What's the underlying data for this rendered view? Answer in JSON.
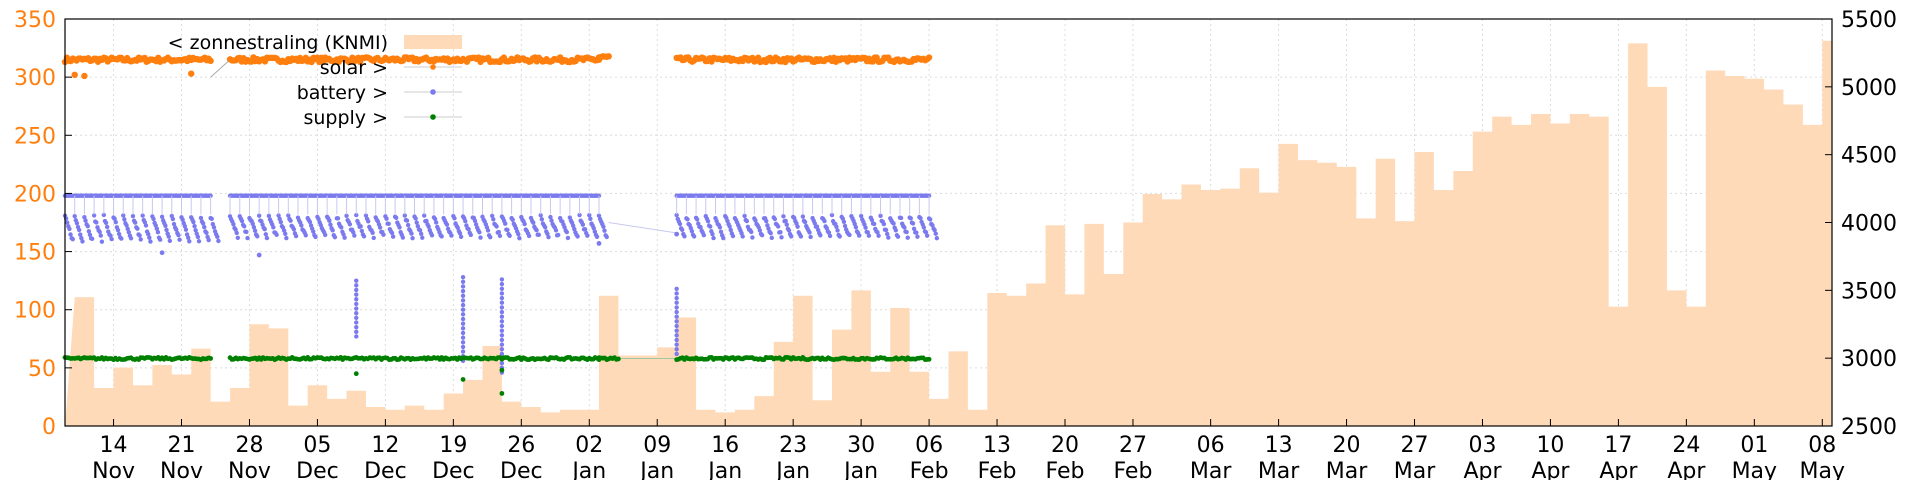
{
  "chart_data": {
    "type": "line",
    "title": "",
    "xlabel": "",
    "ylabel": "",
    "y2label": "",
    "ylim": [
      0,
      350
    ],
    "y2lim": [
      2500,
      5500
    ],
    "yticks": [
      0,
      50,
      100,
      150,
      200,
      250,
      300,
      350
    ],
    "y2ticks": [
      2500,
      3000,
      3500,
      4000,
      4500,
      5000,
      5500
    ],
    "xlim": [
      "2023-11-09",
      "2024-05-09"
    ],
    "xticks": [
      {
        "date": "2023-11-14",
        "day": "14",
        "month": "Nov"
      },
      {
        "date": "2023-11-21",
        "day": "21",
        "month": "Nov"
      },
      {
        "date": "2023-11-28",
        "day": "28",
        "month": "Nov"
      },
      {
        "date": "2023-12-05",
        "day": "05",
        "month": "Dec"
      },
      {
        "date": "2023-12-12",
        "day": "12",
        "month": "Dec"
      },
      {
        "date": "2023-12-19",
        "day": "19",
        "month": "Dec"
      },
      {
        "date": "2023-12-26",
        "day": "26",
        "month": "Dec"
      },
      {
        "date": "2024-01-02",
        "day": "02",
        "month": "Jan"
      },
      {
        "date": "2024-01-09",
        "day": "09",
        "month": "Jan"
      },
      {
        "date": "2024-01-16",
        "day": "16",
        "month": "Jan"
      },
      {
        "date": "2024-01-23",
        "day": "23",
        "month": "Jan"
      },
      {
        "date": "2024-01-30",
        "day": "30",
        "month": "Jan"
      },
      {
        "date": "2024-02-06",
        "day": "06",
        "month": "Feb"
      },
      {
        "date": "2024-02-13",
        "day": "13",
        "month": "Feb"
      },
      {
        "date": "2024-02-20",
        "day": "20",
        "month": "Feb"
      },
      {
        "date": "2024-02-27",
        "day": "27",
        "month": "Feb"
      },
      {
        "date": "2024-03-06",
        "day": "06",
        "month": "Mar"
      },
      {
        "date": "2024-03-13",
        "day": "13",
        "month": "Mar"
      },
      {
        "date": "2024-03-20",
        "day": "20",
        "month": "Mar"
      },
      {
        "date": "2024-03-27",
        "day": "27",
        "month": "Mar"
      },
      {
        "date": "2024-04-03",
        "day": "03",
        "month": "Apr"
      },
      {
        "date": "2024-04-10",
        "day": "10",
        "month": "Apr"
      },
      {
        "date": "2024-04-17",
        "day": "17",
        "month": "Apr"
      },
      {
        "date": "2024-04-24",
        "day": "24",
        "month": "Apr"
      },
      {
        "date": "2024-05-01",
        "day": "01",
        "month": "May"
      },
      {
        "date": "2024-05-08",
        "day": "08",
        "month": "May"
      }
    ],
    "grid": true,
    "legend_position": "top-left",
    "colors": {
      "zonnestraling": "#ffdab9",
      "solar": "#ff7f0e",
      "battery": "#7b7bef",
      "supply": "#008000",
      "left_axis": "#ff7f0e"
    },
    "series": [
      {
        "name": "< zonnestraling (KNMI)",
        "axis": "right",
        "kind": "area",
        "x": [
          "2023-11-10",
          "2023-11-12",
          "2023-11-14",
          "2023-11-16",
          "2023-11-18",
          "2023-11-20",
          "2023-11-22",
          "2023-11-24",
          "2023-11-26",
          "2023-11-28",
          "2023-11-30",
          "2023-12-02",
          "2023-12-04",
          "2023-12-06",
          "2023-12-08",
          "2023-12-10",
          "2023-12-12",
          "2023-12-14",
          "2023-12-16",
          "2023-12-18",
          "2023-12-20",
          "2023-12-22",
          "2023-12-24",
          "2023-12-26",
          "2023-12-28",
          "2023-12-30",
          "2024-01-01",
          "2024-01-03",
          "2024-01-05",
          "2024-01-07",
          "2024-01-09",
          "2024-01-11",
          "2024-01-13",
          "2024-01-15",
          "2024-01-17",
          "2024-01-19",
          "2024-01-21",
          "2024-01-23",
          "2024-01-25",
          "2024-01-27",
          "2024-01-29",
          "2024-01-31",
          "2024-02-02",
          "2024-02-04",
          "2024-02-06",
          "2024-02-08",
          "2024-02-10",
          "2024-02-12",
          "2024-02-14",
          "2024-02-16",
          "2024-02-18",
          "2024-02-20",
          "2024-02-22",
          "2024-02-24",
          "2024-02-26",
          "2024-02-28",
          "2024-03-01",
          "2024-03-03",
          "2024-03-05",
          "2024-03-07",
          "2024-03-09",
          "2024-03-11",
          "2024-03-13",
          "2024-03-15",
          "2024-03-17",
          "2024-03-19",
          "2024-03-21",
          "2024-03-23",
          "2024-03-25",
          "2024-03-27",
          "2024-03-29",
          "2024-03-31",
          "2024-04-02",
          "2024-04-04",
          "2024-04-06",
          "2024-04-08",
          "2024-04-10",
          "2024-04-12",
          "2024-04-14",
          "2024-04-16",
          "2024-04-18",
          "2024-04-20",
          "2024-04-22",
          "2024-04-24",
          "2024-04-26",
          "2024-04-28",
          "2024-04-30",
          "2024-05-02",
          "2024-05-04",
          "2024-05-06",
          "2024-05-08",
          "2024-05-09"
        ],
        "values": [
          3450,
          2780,
          2930,
          2800,
          2950,
          2880,
          3070,
          2680,
          2780,
          3250,
          3220,
          2650,
          2800,
          2700,
          2760,
          2640,
          2620,
          2650,
          2620,
          2740,
          2840,
          3090,
          2680,
          2640,
          2600,
          2620,
          2620,
          3460,
          3020,
          3020,
          3080,
          3300,
          2620,
          2600,
          2620,
          2720,
          3120,
          3460,
          2690,
          3210,
          3500,
          2900,
          3370,
          2900,
          2700,
          3050,
          2620,
          3480,
          3460,
          3550,
          3980,
          3470,
          3990,
          3620,
          4000,
          4210,
          4170,
          4280,
          4240,
          4250,
          4400,
          4220,
          4580,
          4460,
          4440,
          4410,
          4030,
          4470,
          4010,
          4520,
          4240,
          4380,
          4670,
          4780,
          4720,
          4800,
          4730,
          4800,
          4780,
          3380,
          5320,
          5000,
          3500,
          3380,
          5120,
          5080,
          5060,
          4980,
          4870,
          4720,
          5340,
          5200
        ]
      },
      {
        "name": "solar >",
        "axis": "left",
        "kind": "points",
        "segments": [
          {
            "from": "2023-11-09",
            "to": "2023-11-24",
            "value": 315
          },
          {
            "from": "2023-11-26",
            "to": "2024-01-03",
            "value": 315
          },
          {
            "from": "2024-01-03",
            "to": "2024-01-04",
            "value": 317
          },
          {
            "from": "2024-01-11",
            "to": "2024-02-06",
            "value": 315
          }
        ],
        "outliers": [
          {
            "x": "2023-11-10",
            "y": 302
          },
          {
            "x": "2023-11-11",
            "y": 301
          },
          {
            "x": "2023-11-22",
            "y": 303
          }
        ]
      },
      {
        "name": "battery >",
        "axis": "left",
        "kind": "points",
        "segments": [
          {
            "from": "2023-11-09",
            "to": "2023-11-24",
            "high": 198,
            "low": 160
          },
          {
            "from": "2023-11-26",
            "to": "2024-01-03",
            "high": 198,
            "low": 163
          },
          {
            "from": "2024-01-11",
            "to": "2024-02-06",
            "high": 198,
            "low": 163
          }
        ],
        "outliers": [
          {
            "x": "2023-11-19",
            "y": 149
          },
          {
            "x": "2023-11-29",
            "y": 147
          },
          {
            "x": "2024-01-03",
            "y": 157
          },
          {
            "x": "2024-01-11",
            "y": 165
          }
        ],
        "spikes": [
          {
            "x": "2023-12-09",
            "from": 125,
            "to": 75
          },
          {
            "x": "2023-12-20",
            "from": 128,
            "to": 55
          },
          {
            "x": "2023-12-24",
            "from": 126,
            "to": 45
          },
          {
            "x": "2024-01-11",
            "from": 118,
            "to": 62
          }
        ]
      },
      {
        "name": "supply >",
        "axis": "left",
        "kind": "points",
        "segments": [
          {
            "from": "2023-11-09",
            "to": "2023-11-24",
            "value": 58
          },
          {
            "from": "2023-11-26",
            "to": "2024-01-03",
            "value": 58
          },
          {
            "from": "2024-01-03",
            "to": "2024-01-05",
            "value": 58
          },
          {
            "from": "2024-01-11",
            "to": "2024-02-06",
            "value": 58
          }
        ],
        "outliers": [
          {
            "x": "2023-12-09",
            "y": 45
          },
          {
            "x": "2023-12-20",
            "y": 40
          },
          {
            "x": "2023-12-24",
            "y": 48
          },
          {
            "x": "2023-12-24",
            "y": 28
          }
        ]
      }
    ]
  }
}
